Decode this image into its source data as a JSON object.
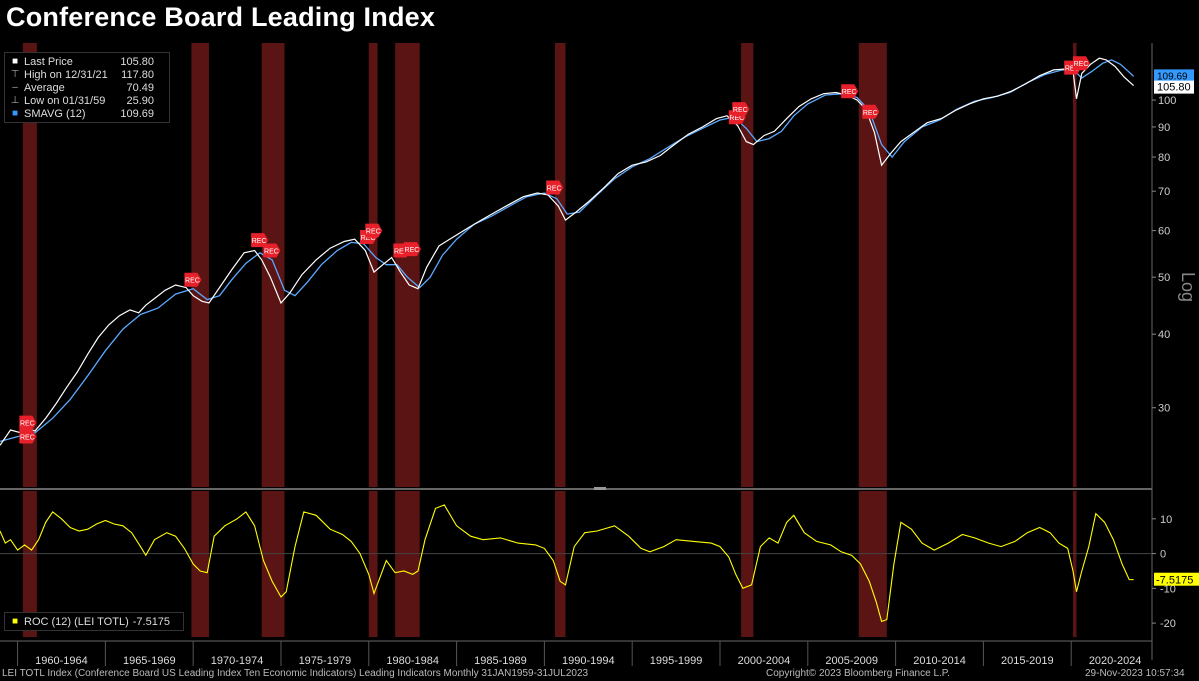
{
  "title": "Conference Board Leading Index",
  "legend_main": {
    "items": [
      {
        "label": "Last Price",
        "value": "105.80",
        "icon": "white-square-icon",
        "color": "#ffffff"
      },
      {
        "label": "High on 12/31/21",
        "value": "117.80",
        "icon": "high-marker-icon",
        "color": "#aaaaaa"
      },
      {
        "label": "Average",
        "value": "70.49",
        "icon": "average-line-icon",
        "color": "#aaaaaa"
      },
      {
        "label": "Low on 01/31/59",
        "value": "25.90",
        "icon": "low-marker-icon",
        "color": "#aaaaaa"
      },
      {
        "label": "SMAVG (12)",
        "value": "109.69",
        "icon": "blue-square-icon",
        "color": "#3399ff"
      }
    ]
  },
  "legend_roc": {
    "label": "ROC (12) (LEI TOTL)",
    "value": "-7.5175",
    "color": "#ffff00"
  },
  "footer": {
    "left": "LEI TOTL Index (Conference Board US Leading Index Ten Economic Indicators) Leading Indicators  Monthly 31JAN1959-31JUL2023",
    "center": "Copyright© 2023 Bloomberg Finance L.P.",
    "right": "29-Nov-2023 10:57:34"
  },
  "colors": {
    "background": "#000000",
    "price": "#ffffff",
    "smavg": "#5aa9ff",
    "roc": "#ffff00",
    "recession": "#5a1414",
    "rec_badge": "#e8202a",
    "grid": "#555555"
  },
  "chart_data": [
    {
      "type": "line",
      "scale": "log",
      "ylabel": "Log",
      "ylim": [
        22,
        125
      ],
      "yticks": [
        30,
        40,
        50,
        60,
        70,
        80,
        90,
        100
      ],
      "xlim": [
        1959.0,
        2024.6
      ],
      "x_tick_labels": [
        "1960-1964",
        "1965-1969",
        "1970-1974",
        "1975-1979",
        "1980-1984",
        "1985-1989",
        "1990-1994",
        "1995-1999",
        "2000-2004",
        "2005-2009",
        "2010-2014",
        "2015-2019",
        "2020-2024"
      ],
      "recessions": [
        [
          1960.3,
          1961.1
        ],
        [
          1969.9,
          1970.9
        ],
        [
          1973.9,
          1975.2
        ],
        [
          1980.0,
          1980.5
        ],
        [
          1981.5,
          1982.9
        ],
        [
          1990.6,
          1991.2
        ],
        [
          2001.2,
          2001.9
        ],
        [
          2007.9,
          2009.5
        ],
        [
          2020.1,
          2020.3
        ]
      ],
      "rec_markers": [
        [
          1960.5,
          26.8
        ],
        [
          1960.5,
          28.3
        ],
        [
          1969.9,
          49.5
        ],
        [
          1973.7,
          57.8
        ],
        [
          1974.4,
          55.5
        ],
        [
          1979.9,
          58.5
        ],
        [
          1980.2,
          60.0
        ],
        [
          1981.8,
          55.5
        ],
        [
          1982.4,
          55.8
        ],
        [
          1990.5,
          71.0
        ],
        [
          2000.9,
          93.5
        ],
        [
          2001.1,
          96.5
        ],
        [
          2007.3,
          103.5
        ],
        [
          2008.5,
          95.5
        ],
        [
          2020.0,
          113.5
        ],
        [
          2020.5,
          115.5
        ]
      ],
      "last_price_label": "105.80",
      "smavg_label": "109.69",
      "series": [
        {
          "name": "Last Price",
          "x": [
            1959.0,
            1959.6,
            1960.2,
            1960.6,
            1961.0,
            1961.6,
            1962.2,
            1962.8,
            1963.4,
            1964.0,
            1964.6,
            1965.2,
            1965.8,
            1966.4,
            1966.9,
            1967.3,
            1967.8,
            1968.4,
            1969.0,
            1969.6,
            1970.0,
            1970.5,
            1970.9,
            1971.5,
            1972.2,
            1972.9,
            1973.5,
            1973.9,
            1974.4,
            1975.0,
            1975.5,
            1976.2,
            1977.0,
            1977.8,
            1978.6,
            1979.2,
            1979.8,
            1980.3,
            1980.8,
            1981.3,
            1981.8,
            1982.3,
            1982.8,
            1983.3,
            1984.0,
            1984.8,
            1985.6,
            1986.4,
            1987.2,
            1988.0,
            1988.8,
            1989.6,
            1990.2,
            1990.8,
            1991.2,
            1991.8,
            1992.6,
            1993.4,
            1994.2,
            1995.0,
            1995.8,
            1996.6,
            1997.4,
            1998.2,
            1999.0,
            1999.8,
            2000.4,
            2001.0,
            2001.5,
            2001.9,
            2002.5,
            2003.1,
            2003.8,
            2004.5,
            2005.2,
            2005.9,
            2006.6,
            2007.2,
            2007.8,
            2008.3,
            2008.8,
            2009.2,
            2009.7,
            2010.3,
            2011.0,
            2011.8,
            2012.6,
            2013.4,
            2014.2,
            2015.0,
            2015.8,
            2016.6,
            2017.4,
            2018.2,
            2019.0,
            2019.8,
            2020.1,
            2020.3,
            2020.6,
            2021.1,
            2021.6,
            2022.0,
            2022.5,
            2023.0,
            2023.55
          ],
          "values": [
            25.9,
            27.5,
            27.2,
            27.6,
            27.4,
            28.8,
            30.5,
            32.5,
            34.5,
            37.0,
            39.5,
            41.5,
            43.0,
            44.0,
            43.5,
            44.8,
            46.0,
            47.5,
            48.5,
            48.0,
            46.5,
            45.5,
            45.2,
            48.0,
            51.5,
            55.0,
            55.5,
            53.5,
            50.0,
            45.2,
            47.0,
            50.5,
            53.5,
            56.0,
            57.5,
            58.0,
            55.5,
            51.0,
            52.5,
            54.0,
            51.0,
            48.5,
            47.8,
            52.0,
            56.5,
            58.5,
            60.5,
            62.5,
            64.5,
            66.5,
            68.5,
            69.5,
            69.0,
            66.0,
            62.5,
            64.5,
            67.5,
            71.0,
            75.0,
            77.5,
            78.5,
            80.5,
            84.0,
            87.5,
            90.0,
            93.0,
            94.0,
            90.5,
            85.0,
            84.0,
            87.0,
            88.5,
            93.0,
            97.5,
            100.5,
            102.5,
            103.0,
            102.0,
            100.0,
            96.5,
            88.0,
            77.5,
            81.0,
            85.0,
            88.0,
            91.5,
            93.0,
            96.0,
            98.5,
            100.5,
            101.5,
            103.5,
            106.5,
            110.0,
            112.5,
            113.0,
            112.0,
            100.5,
            111.0,
            115.0,
            117.8,
            117.0,
            114.0,
            109.5,
            105.8
          ]
        },
        {
          "name": "SMAVG (12)",
          "x": [
            1959.0,
            1960.0,
            1961.0,
            1962.0,
            1963.0,
            1964.0,
            1965.0,
            1966.0,
            1967.0,
            1968.0,
            1969.0,
            1970.0,
            1970.8,
            1971.5,
            1972.2,
            1973.0,
            1973.8,
            1974.5,
            1975.2,
            1975.8,
            1976.5,
            1977.3,
            1978.2,
            1979.0,
            1979.7,
            1980.4,
            1981.0,
            1981.6,
            1982.2,
            1982.9,
            1983.5,
            1984.2,
            1985.0,
            1986.0,
            1987.0,
            1988.0,
            1989.0,
            1990.0,
            1990.7,
            1991.3,
            1992.0,
            1993.0,
            1994.0,
            1995.0,
            1996.0,
            1997.0,
            1998.0,
            1999.0,
            2000.0,
            2000.8,
            2001.5,
            2002.1,
            2002.8,
            2003.5,
            2004.2,
            2005.0,
            2006.0,
            2007.0,
            2007.8,
            2008.5,
            2009.2,
            2009.8,
            2010.5,
            2011.5,
            2012.5,
            2013.5,
            2014.5,
            2015.5,
            2016.5,
            2017.5,
            2018.5,
            2019.5,
            2020.2,
            2020.6,
            2021.2,
            2021.8,
            2022.3,
            2022.8,
            2023.3,
            2023.55
          ],
          "values": [
            26.3,
            26.8,
            27.2,
            28.8,
            31.0,
            34.0,
            37.5,
            40.8,
            43.2,
            44.3,
            46.8,
            47.8,
            45.8,
            46.5,
            49.5,
            52.8,
            55.0,
            53.5,
            47.5,
            46.5,
            49.0,
            52.5,
            55.5,
            57.3,
            57.0,
            54.0,
            52.5,
            52.5,
            50.0,
            48.0,
            50.0,
            54.5,
            58.0,
            61.5,
            63.5,
            66.0,
            68.5,
            69.5,
            68.0,
            64.0,
            64.5,
            69.0,
            73.5,
            77.0,
            79.5,
            83.0,
            86.5,
            89.5,
            92.5,
            93.5,
            89.5,
            85.0,
            86.0,
            88.5,
            94.0,
            98.5,
            102.0,
            102.5,
            101.0,
            96.0,
            84.0,
            80.0,
            85.0,
            90.0,
            92.5,
            96.5,
            99.5,
            101.0,
            103.0,
            107.0,
            110.5,
            112.5,
            112.0,
            109.0,
            112.0,
            115.5,
            117.0,
            115.0,
            111.5,
            109.69
          ]
        }
      ]
    },
    {
      "type": "line",
      "ylim": [
        -24,
        18
      ],
      "yticks": [
        -20,
        -10,
        0,
        10
      ],
      "last_label": "-7.5175",
      "series": [
        {
          "name": "ROC (12) (LEI TOTL)",
          "x": [
            1959.0,
            1959.3,
            1959.6,
            1960.0,
            1960.4,
            1960.8,
            1961.2,
            1961.6,
            1962.0,
            1962.5,
            1963.0,
            1963.5,
            1964.0,
            1964.5,
            1965.0,
            1965.5,
            1966.0,
            1966.5,
            1967.0,
            1967.3,
            1967.8,
            1968.5,
            1969.0,
            1969.5,
            1970.0,
            1970.4,
            1970.8,
            1971.2,
            1971.8,
            1972.5,
            1973.0,
            1973.5,
            1974.0,
            1974.5,
            1975.0,
            1975.3,
            1975.8,
            1976.3,
            1977.0,
            1977.8,
            1978.5,
            1979.0,
            1979.5,
            1980.0,
            1980.3,
            1980.7,
            1981.0,
            1981.5,
            1982.0,
            1982.5,
            1982.8,
            1983.2,
            1983.8,
            1984.3,
            1985.0,
            1985.8,
            1986.5,
            1987.5,
            1988.5,
            1989.5,
            1990.0,
            1990.5,
            1990.9,
            1991.2,
            1991.7,
            1992.3,
            1993.0,
            1994.0,
            1994.8,
            1995.5,
            1996.0,
            1996.8,
            1997.5,
            1998.5,
            1999.5,
            2000.0,
            2000.5,
            2000.9,
            2001.3,
            2001.8,
            2002.3,
            2002.8,
            2003.3,
            2003.8,
            2004.2,
            2004.8,
            2005.5,
            2006.3,
            2006.9,
            2007.5,
            2008.0,
            2008.5,
            2008.9,
            2009.2,
            2009.5,
            2009.9,
            2010.3,
            2010.9,
            2011.5,
            2012.2,
            2013.0,
            2013.8,
            2014.5,
            2015.3,
            2016.0,
            2016.8,
            2017.5,
            2018.2,
            2018.8,
            2019.3,
            2019.8,
            2020.1,
            2020.3,
            2020.6,
            2021.0,
            2021.4,
            2021.9,
            2022.4,
            2022.9,
            2023.3,
            2023.55
          ],
          "values": [
            6.5,
            3.0,
            4.0,
            1.0,
            2.5,
            1.0,
            4.0,
            9.0,
            12.0,
            10.0,
            7.5,
            6.5,
            7.0,
            8.5,
            9.5,
            8.5,
            8.0,
            6.0,
            2.0,
            -0.5,
            4.0,
            6.0,
            5.0,
            1.5,
            -3.0,
            -5.0,
            -5.5,
            5.0,
            8.0,
            10.0,
            12.0,
            8.0,
            -2.0,
            -8.0,
            -12.5,
            -11.0,
            2.0,
            12.0,
            11.0,
            7.0,
            5.5,
            3.5,
            0.0,
            -6.0,
            -11.5,
            -6.0,
            -2.0,
            -5.5,
            -5.0,
            -6.0,
            -5.0,
            4.0,
            13.0,
            14.0,
            8.0,
            5.0,
            4.0,
            4.5,
            3.0,
            2.5,
            1.5,
            -2.0,
            -8.0,
            -9.0,
            2.0,
            6.0,
            6.5,
            8.0,
            5.0,
            1.5,
            0.5,
            2.0,
            4.0,
            3.5,
            3.0,
            2.0,
            -1.0,
            -6.0,
            -10.0,
            -9.0,
            2.0,
            4.5,
            3.0,
            9.0,
            11.0,
            6.0,
            3.5,
            2.5,
            0.5,
            -0.5,
            -3.0,
            -8.0,
            -14.0,
            -19.5,
            -19.0,
            -3.0,
            9.0,
            7.0,
            3.0,
            1.0,
            3.0,
            5.5,
            4.5,
            3.0,
            2.0,
            3.5,
            6.0,
            7.5,
            6.0,
            3.0,
            1.5,
            -5.0,
            -11.0,
            -5.0,
            2.0,
            11.5,
            9.0,
            4.0,
            -3.0,
            -7.5,
            -7.5175
          ]
        }
      ]
    }
  ]
}
